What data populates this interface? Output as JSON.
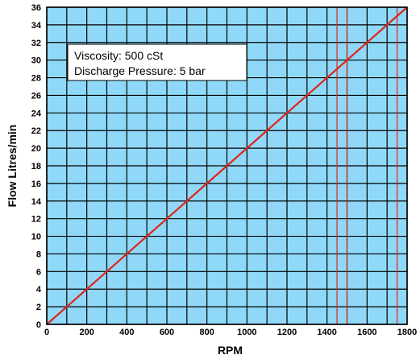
{
  "chart_data": {
    "type": "line",
    "xlabel": "RPM",
    "ylabel": "Flow Litres/min",
    "xlim": [
      0,
      1800
    ],
    "ylim": [
      0,
      36
    ],
    "x_ticks": [
      0,
      200,
      400,
      600,
      800,
      1000,
      1200,
      1400,
      1600,
      1800
    ],
    "y_ticks": [
      0,
      2,
      4,
      6,
      8,
      10,
      12,
      14,
      16,
      18,
      20,
      22,
      24,
      26,
      28,
      30,
      32,
      34,
      36
    ],
    "grid": true,
    "annotation": {
      "lines": [
        "Viscosity: 500 cSt",
        "Discharge Pressure: 5 bar"
      ]
    },
    "series": [
      {
        "x": [
          0,
          1800
        ],
        "y": [
          0,
          36
        ]
      }
    ],
    "reference_lines_x": [
      1450,
      1500,
      1750
    ]
  },
  "colors": {
    "plot_background": "#8FD8F7",
    "grid": "#000000",
    "series_line": "#E2231A",
    "text": "#000000"
  }
}
